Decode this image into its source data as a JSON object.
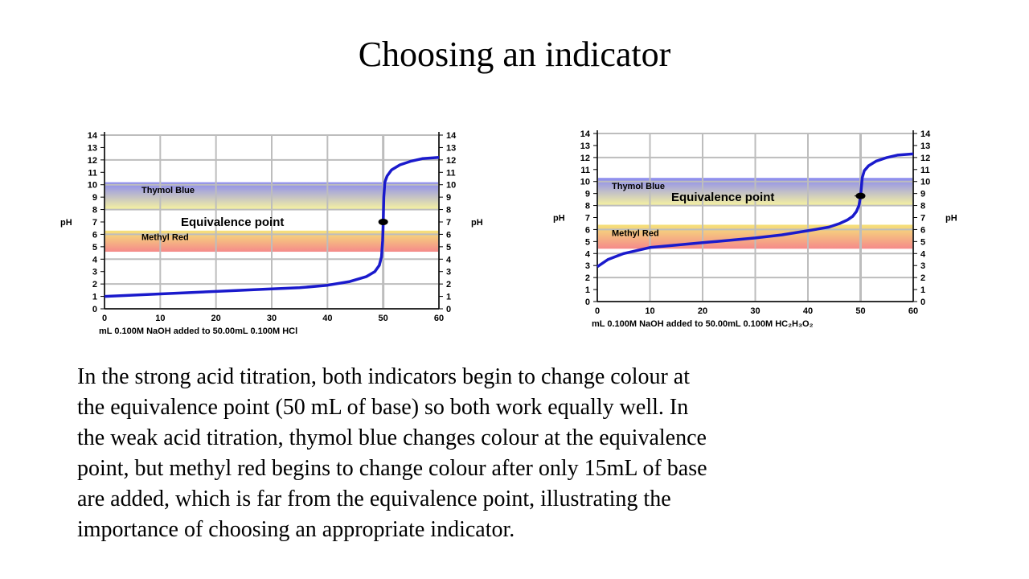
{
  "slide": {
    "title": "Choosing an indicator",
    "body_lines": [
      "In the strong acid titration, both indicators begin to change colour at",
      "the equivalence point (50 mL of base) so both work equally well. In",
      "the weak acid titration, thymol blue changes colour at the equivalence",
      "point, but methyl red begins to change colour after only 15mL of base",
      "are added, which is far from the equivalence point, illustrating the",
      "importance of choosing an appropriate indicator."
    ]
  },
  "colors": {
    "curve": "#1a1acc",
    "grid": "#bdbdbd",
    "thymol_top": "#8a8af0",
    "thymol_bottom": "#f7f3a0",
    "methyl_top": "#f5e27a",
    "methyl_bottom": "#f58a8a"
  },
  "chart_data": [
    {
      "type": "line",
      "ylabel": "pH",
      "xlabel": "mL 0.100M NaOH added to 50.00mL 0.100M HCl",
      "xlim": [
        0,
        60
      ],
      "ylim": [
        0,
        14
      ],
      "x_ticks": [
        0,
        10,
        20,
        30,
        40,
        50,
        60
      ],
      "y_ticks": [
        0,
        1,
        2,
        3,
        4,
        5,
        6,
        7,
        8,
        9,
        10,
        11,
        12,
        13,
        14
      ],
      "grid": true,
      "indicator_bands": [
        {
          "name": "Thymol Blue",
          "y_range": [
            8.0,
            10.2
          ]
        },
        {
          "name": "Methyl Red",
          "y_range": [
            4.6,
            6.3
          ]
        }
      ],
      "equivalence_point": {
        "label": "Equivalence point",
        "x": 50,
        "y": 7
      },
      "series": [
        {
          "x": [
            0,
            10,
            20,
            30,
            35,
            40,
            44,
            47,
            48.5,
            49.3,
            49.7,
            49.9,
            50,
            50.1,
            50.3,
            50.7,
            51.5,
            53,
            55,
            57,
            60
          ],
          "y": [
            1.0,
            1.2,
            1.4,
            1.6,
            1.7,
            1.9,
            2.2,
            2.6,
            3.0,
            3.5,
            4.2,
            5.5,
            7.0,
            9.0,
            10.2,
            10.7,
            11.2,
            11.6,
            11.9,
            12.1,
            12.2
          ]
        }
      ]
    },
    {
      "type": "line",
      "ylabel": "pH",
      "xlabel": "mL 0.100M NaOH added to 50.00mL 0.100M HC₂H₃O₂",
      "xlim": [
        0,
        60
      ],
      "ylim": [
        0,
        14
      ],
      "x_ticks": [
        0,
        10,
        20,
        30,
        40,
        50,
        60
      ],
      "y_ticks": [
        0,
        1,
        2,
        3,
        4,
        5,
        6,
        7,
        8,
        9,
        10,
        11,
        12,
        13,
        14
      ],
      "grid": true,
      "indicator_bands": [
        {
          "name": "Thymol Blue",
          "y_range": [
            8.0,
            10.3
          ]
        },
        {
          "name": "Methyl Red",
          "y_range": [
            4.4,
            6.4
          ]
        }
      ],
      "equivalence_point": {
        "label": "Equivalence point",
        "x": 50,
        "y": 8.8
      },
      "series": [
        {
          "x": [
            0,
            2,
            5,
            10,
            15,
            20,
            25,
            30,
            35,
            40,
            44,
            46,
            47.5,
            48.5,
            49.2,
            49.7,
            50,
            50.3,
            50.7,
            51.5,
            53,
            55,
            57,
            60
          ],
          "y": [
            2.9,
            3.5,
            4.0,
            4.5,
            4.7,
            4.9,
            5.1,
            5.3,
            5.55,
            5.9,
            6.2,
            6.5,
            6.8,
            7.1,
            7.5,
            8.0,
            8.8,
            10.3,
            10.9,
            11.3,
            11.7,
            12.0,
            12.2,
            12.3
          ]
        }
      ]
    }
  ]
}
